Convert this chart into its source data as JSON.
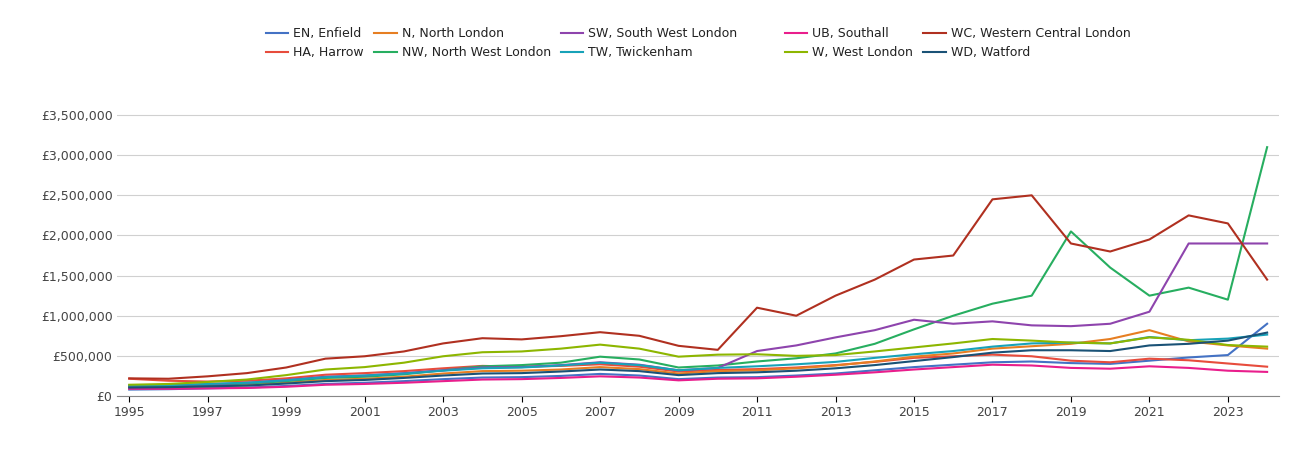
{
  "years": [
    1995,
    1996,
    1997,
    1998,
    1999,
    2000,
    2001,
    2002,
    2003,
    2004,
    2005,
    2006,
    2007,
    2008,
    2009,
    2010,
    2011,
    2012,
    2013,
    2014,
    2015,
    2016,
    2017,
    2018,
    2019,
    2020,
    2021,
    2022,
    2023,
    2024
  ],
  "series": {
    "EN, Enfield": {
      "color": "#4472c4",
      "values": [
        80000,
        85000,
        95000,
        105000,
        125000,
        150000,
        165000,
        185000,
        210000,
        230000,
        235000,
        250000,
        275000,
        255000,
        210000,
        230000,
        235000,
        255000,
        280000,
        320000,
        360000,
        390000,
        420000,
        430000,
        410000,
        400000,
        440000,
        480000,
        510000,
        900000
      ]
    },
    "HA, Harrow": {
      "color": "#c0392b",
      "values": [
        215000,
        190000,
        180000,
        190000,
        220000,
        265000,
        285000,
        310000,
        345000,
        375000,
        365000,
        375000,
        395000,
        365000,
        305000,
        325000,
        335000,
        355000,
        385000,
        425000,
        475000,
        495000,
        515000,
        495000,
        440000,
        420000,
        465000,
        445000,
        405000,
        365000
      ]
    },
    "N, North London": {
      "color": "#e67e22",
      "values": [
        105000,
        110000,
        120000,
        135000,
        165000,
        200000,
        215000,
        240000,
        280000,
        310000,
        315000,
        330000,
        360000,
        335000,
        280000,
        310000,
        320000,
        345000,
        380000,
        430000,
        490000,
        530000,
        590000,
        620000,
        650000,
        710000,
        820000,
        680000,
        630000,
        590000
      ]
    },
    "NW, North West London": {
      "color": "#27ae60",
      "values": [
        115000,
        120000,
        135000,
        155000,
        185000,
        225000,
        240000,
        270000,
        320000,
        370000,
        385000,
        415000,
        490000,
        455000,
        355000,
        380000,
        430000,
        470000,
        530000,
        650000,
        830000,
        1000000,
        1150000,
        1250000,
        2050000,
        1600000,
        1250000,
        1350000,
        1200000,
        3100000
      ]
    },
    "SW, South West London": {
      "color": "#8e44ad",
      "values": [
        130000,
        135000,
        145000,
        165000,
        200000,
        240000,
        255000,
        285000,
        320000,
        355000,
        360000,
        385000,
        420000,
        390000,
        320000,
        350000,
        560000,
        630000,
        730000,
        820000,
        950000,
        900000,
        930000,
        880000,
        870000,
        900000,
        1050000,
        1900000,
        1900000,
        1900000
      ]
    },
    "TW, Twickenham": {
      "color": "#17a2b8",
      "values": [
        130000,
        135000,
        150000,
        165000,
        195000,
        235000,
        255000,
        280000,
        315000,
        345000,
        355000,
        380000,
        415000,
        385000,
        320000,
        350000,
        370000,
        395000,
        425000,
        475000,
        520000,
        560000,
        615000,
        655000,
        665000,
        655000,
        735000,
        695000,
        715000,
        765000
      ]
    },
    "UB, Southall": {
      "color": "#e91e8c",
      "values": [
        90000,
        90000,
        95000,
        100000,
        115000,
        140000,
        150000,
        165000,
        185000,
        205000,
        210000,
        225000,
        245000,
        230000,
        195000,
        215000,
        220000,
        240000,
        265000,
        295000,
        330000,
        360000,
        390000,
        380000,
        350000,
        340000,
        370000,
        350000,
        315000,
        300000
      ]
    },
    "W, West London": {
      "color": "#8db600",
      "values": [
        140000,
        150000,
        175000,
        205000,
        260000,
        330000,
        360000,
        415000,
        495000,
        545000,
        555000,
        590000,
        640000,
        590000,
        490000,
        515000,
        520000,
        500000,
        510000,
        555000,
        605000,
        655000,
        710000,
        690000,
        665000,
        655000,
        730000,
        700000,
        635000,
        615000
      ]
    },
    "WC, Western Central London": {
      "color": "#c0392b",
      "values": [
        220000,
        215000,
        245000,
        285000,
        355000,
        465000,
        495000,
        555000,
        655000,
        720000,
        705000,
        745000,
        795000,
        750000,
        625000,
        575000,
        1100000,
        1000000,
        1250000,
        1450000,
        1700000,
        1750000,
        2450000,
        2500000,
        1900000,
        1800000,
        1950000,
        2250000,
        2150000,
        1450000
      ]
    },
    "WD, Watford": {
      "color": "#1a5276",
      "values": [
        105000,
        110000,
        120000,
        130000,
        155000,
        185000,
        200000,
        225000,
        255000,
        280000,
        285000,
        305000,
        330000,
        310000,
        260000,
        285000,
        295000,
        315000,
        345000,
        385000,
        435000,
        485000,
        540000,
        570000,
        570000,
        560000,
        630000,
        650000,
        690000,
        790000
      ]
    }
  },
  "ylim": [
    0,
    3700000
  ],
  "yticks": [
    0,
    500000,
    1000000,
    1500000,
    2000000,
    2500000,
    3000000,
    3500000
  ],
  "background_color": "#ffffff",
  "grid_color": "#d0d0d0",
  "legend_row1": [
    "EN, Enfield",
    "HA, Harrow",
    "N, North London",
    "NW, North West London",
    "SW, South West London",
    "TW, Twickenham"
  ],
  "legend_row2": [
    "UB, Southall",
    "W, West London",
    "WC, Western Central London",
    "WD, Watford"
  ]
}
